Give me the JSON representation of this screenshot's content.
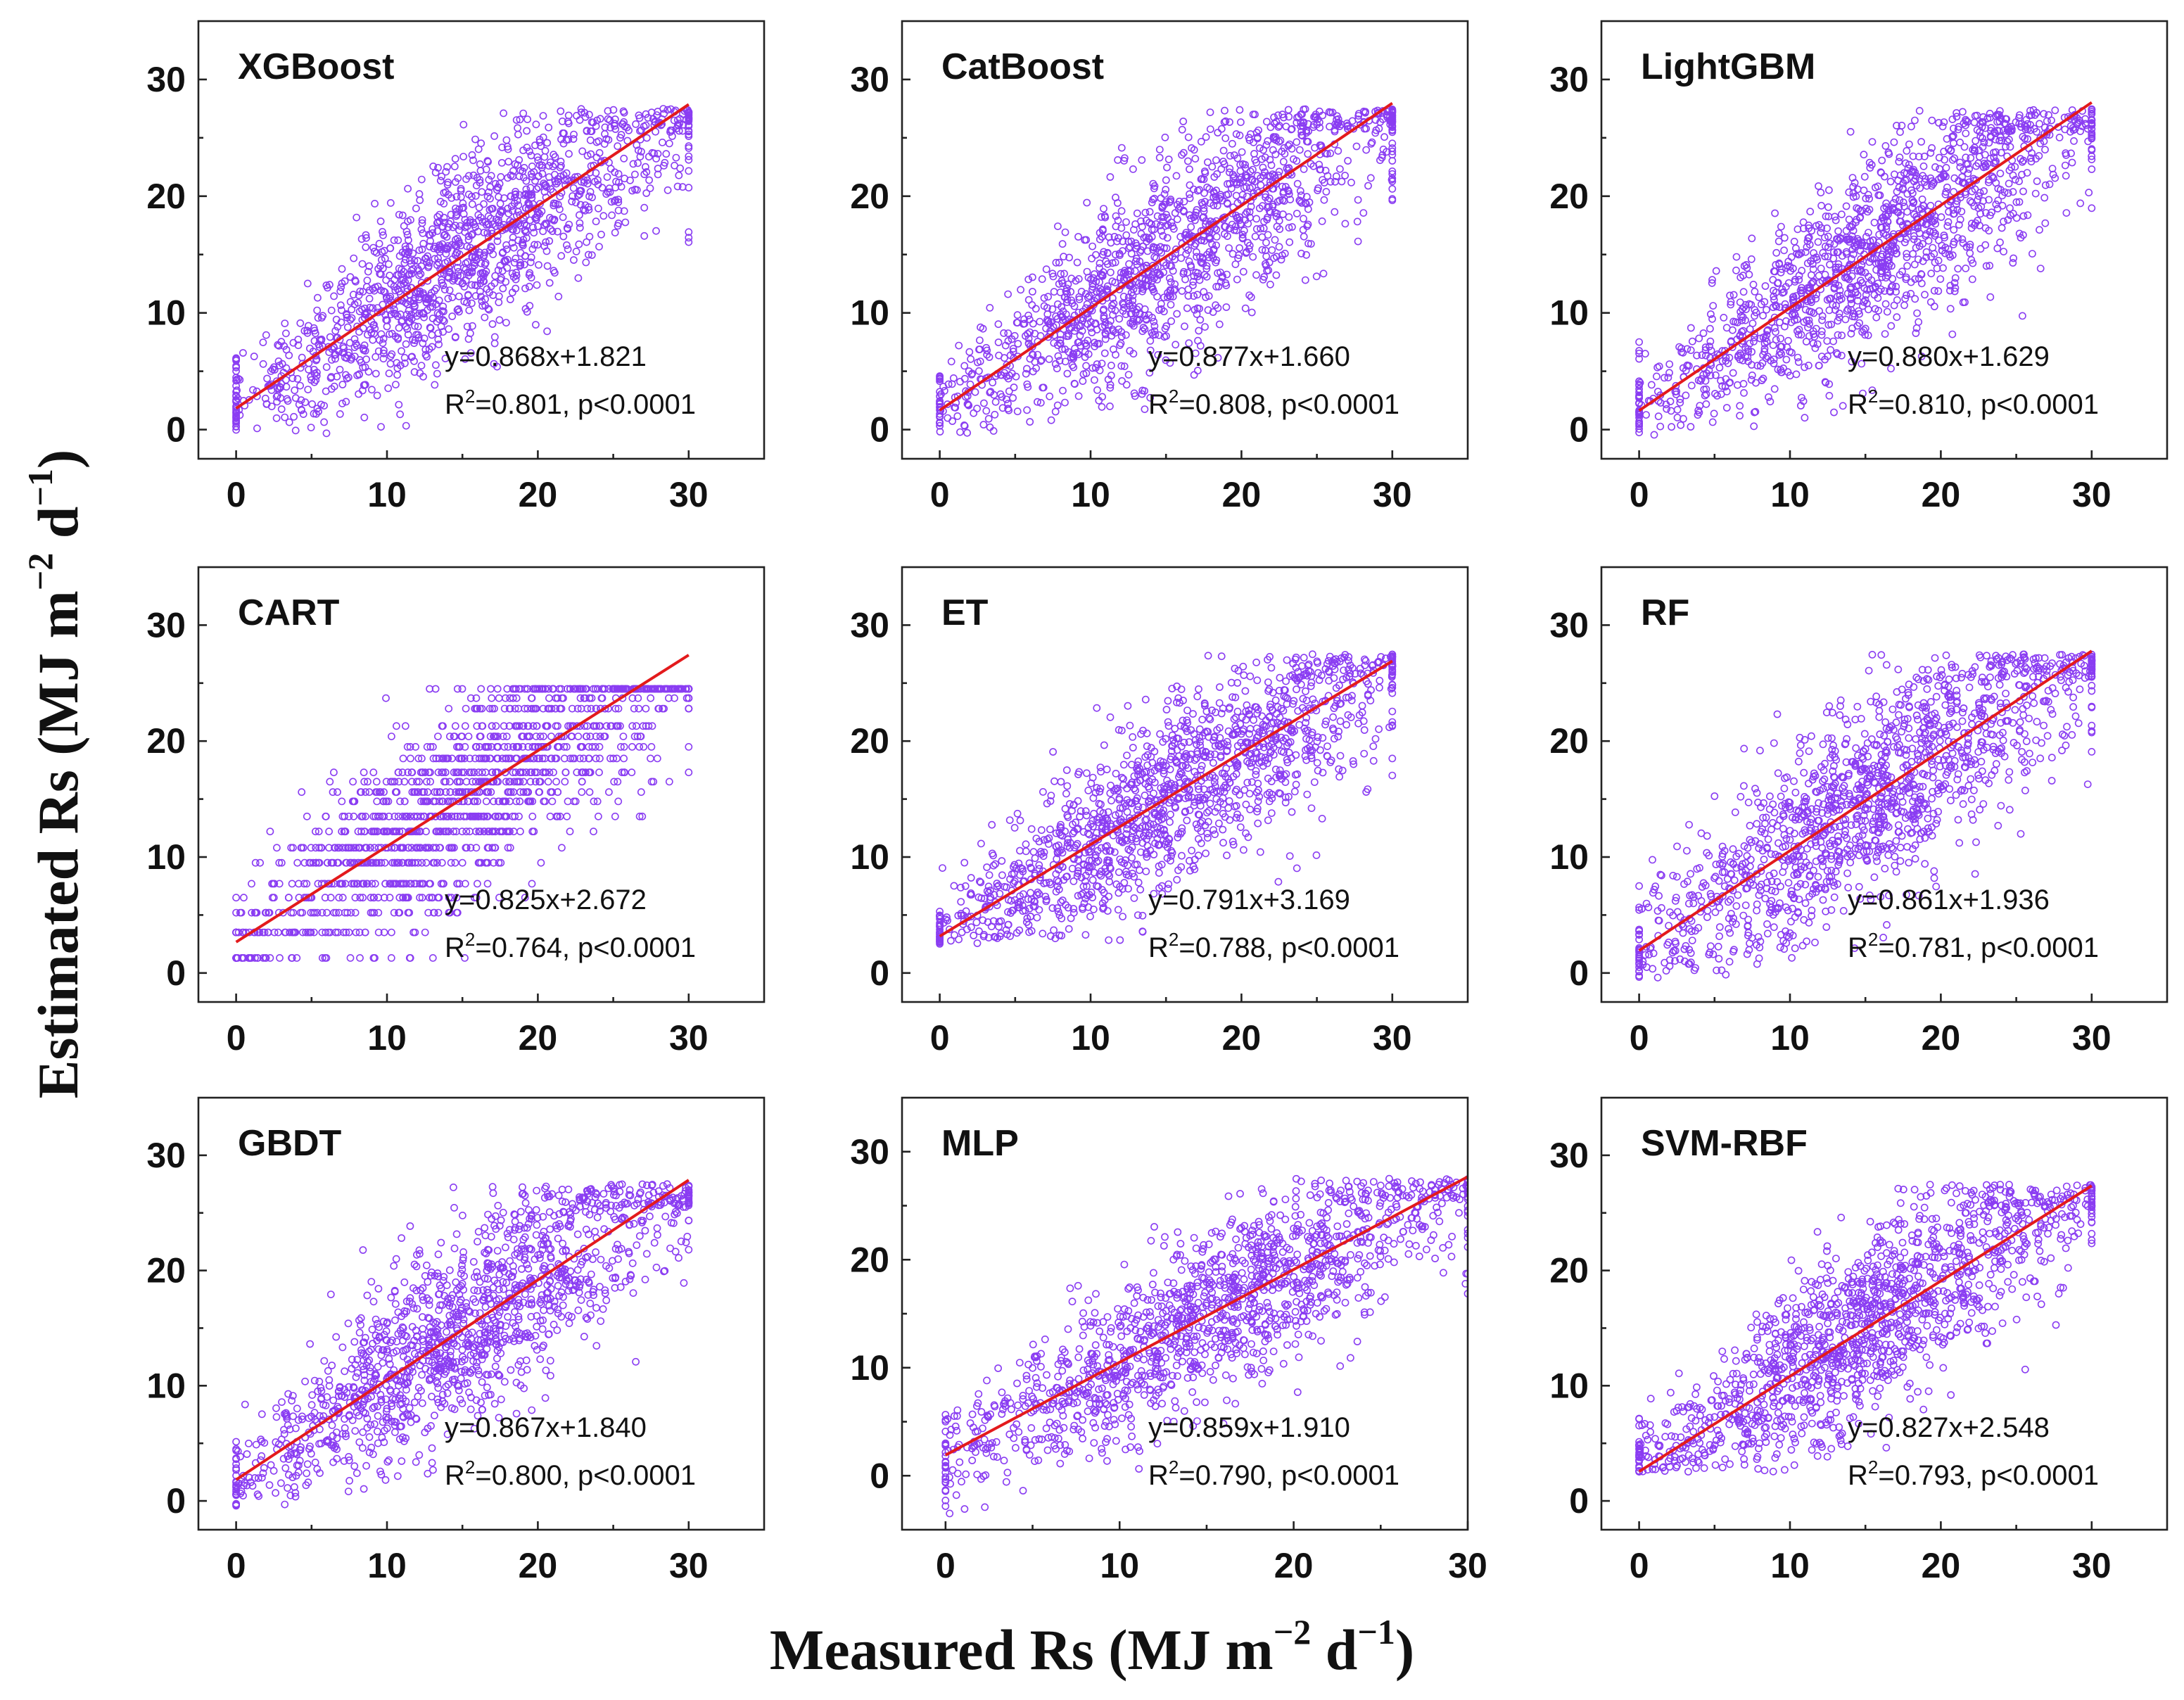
{
  "figure": {
    "x_axis_title": {
      "main": "Measured Rs (MJ m",
      "sup1": "−2",
      "mid": " d",
      "sup2": "−1",
      "end": ")"
    },
    "y_axis_title": {
      "main": "Estimated Rs (MJ m",
      "sup1": "−2",
      "mid": " d",
      "sup2": "−1",
      "end": ")"
    }
  },
  "colors": {
    "points": "#8a3df2",
    "fit_line": "#e31a1c",
    "frame": "#222222"
  },
  "chart_data": [
    {
      "type": "scatter",
      "title": "XGBoost",
      "equation": "y=0.868x+1.821",
      "r2_value": "=0.801, p<0.0001",
      "r2_symbol": "R",
      "r2_sup": "2",
      "slope": 0.868,
      "intercept": 1.821,
      "r2": 0.801,
      "xlim": [
        -2.5,
        35
      ],
      "ylim": [
        -2.5,
        35
      ],
      "xticks": [
        0,
        10,
        20,
        30
      ],
      "yticks": [
        0,
        10,
        20,
        30
      ],
      "spread": 4.2,
      "variant": "normal"
    },
    {
      "type": "scatter",
      "title": "CatBoost",
      "equation": "y=0.877x+1.660",
      "r2_value": "=0.808, p<0.0001",
      "r2_symbol": "R",
      "r2_sup": "2",
      "slope": 0.877,
      "intercept": 1.66,
      "r2": 0.808,
      "xlim": [
        -2.5,
        35
      ],
      "ylim": [
        -2.5,
        35
      ],
      "xticks": [
        0,
        10,
        20,
        30
      ],
      "yticks": [
        0,
        10,
        20,
        30
      ],
      "spread": 4.1,
      "variant": "normal"
    },
    {
      "type": "scatter",
      "title": "LightGBM",
      "equation": "y=0.880x+1.629",
      "r2_value": "=0.810, p<0.0001",
      "r2_symbol": "R",
      "r2_sup": "2",
      "slope": 0.88,
      "intercept": 1.629,
      "r2": 0.81,
      "xlim": [
        -2.5,
        35
      ],
      "ylim": [
        -2.5,
        35
      ],
      "xticks": [
        0,
        10,
        20,
        30
      ],
      "yticks": [
        0,
        10,
        20,
        30
      ],
      "spread": 4.1,
      "variant": "normal"
    },
    {
      "type": "scatter",
      "title": "CART",
      "equation": "y=0.825x+2.672",
      "r2_value": "=0.764, p<0.0001",
      "r2_symbol": "R",
      "r2_sup": "2",
      "slope": 0.825,
      "intercept": 2.672,
      "r2": 0.764,
      "xlim": [
        -2.5,
        35
      ],
      "ylim": [
        -2.5,
        35
      ],
      "xticks": [
        0,
        10,
        20,
        30
      ],
      "yticks": [
        0,
        10,
        20,
        30
      ],
      "spread": 4.4,
      "variant": "cart"
    },
    {
      "type": "scatter",
      "title": "ET",
      "equation": "y=0.791x+3.169",
      "r2_value": "=0.788, p<0.0001",
      "r2_symbol": "R",
      "r2_sup": "2",
      "slope": 0.791,
      "intercept": 3.169,
      "r2": 0.788,
      "xlim": [
        -2.5,
        35
      ],
      "ylim": [
        -2.5,
        35
      ],
      "xticks": [
        0,
        10,
        20,
        30
      ],
      "yticks": [
        0,
        10,
        20,
        30
      ],
      "spread": 3.9,
      "variant": "floor"
    },
    {
      "type": "scatter",
      "title": "RF",
      "equation": "y=0.861x+1.936",
      "r2_value": "=0.781, p<0.0001",
      "r2_symbol": "R",
      "r2_sup": "2",
      "slope": 0.861,
      "intercept": 1.936,
      "r2": 0.781,
      "xlim": [
        -2.5,
        35
      ],
      "ylim": [
        -2.5,
        35
      ],
      "xticks": [
        0,
        10,
        20,
        30
      ],
      "yticks": [
        0,
        10,
        20,
        30
      ],
      "spread": 4.5,
      "variant": "normal"
    },
    {
      "type": "scatter",
      "title": "GBDT",
      "equation": "y=0.867x+1.840",
      "r2_value": "=0.800, p<0.0001",
      "r2_symbol": "R",
      "r2_sup": "2",
      "slope": 0.867,
      "intercept": 1.84,
      "r2": 0.8,
      "xlim": [
        -2.5,
        35
      ],
      "ylim": [
        -2.5,
        35
      ],
      "xticks": [
        0,
        10,
        20,
        30
      ],
      "yticks": [
        0,
        10,
        20,
        30
      ],
      "spread": 4.2,
      "variant": "normal"
    },
    {
      "type": "scatter",
      "title": "MLP",
      "equation": "y=0.859x+1.910",
      "r2_value": "=0.790, p<0.0001",
      "r2_symbol": "R",
      "r2_sup": "2",
      "slope": 0.859,
      "intercept": 1.91,
      "r2": 0.79,
      "xlim": [
        -2.5,
        30
      ],
      "ylim": [
        -5,
        35
      ],
      "xticks": [
        0,
        10,
        20,
        30
      ],
      "yticks": [
        0,
        10,
        20,
        30
      ],
      "spread": 4.0,
      "variant": "mlp"
    },
    {
      "type": "scatter",
      "title": "SVM-RBF",
      "equation": "y=0.827x+2.548",
      "r2_value": "=0.793, p<0.0001",
      "r2_symbol": "R",
      "r2_sup": "2",
      "slope": 0.827,
      "intercept": 2.548,
      "r2": 0.793,
      "xlim": [
        -2.5,
        35
      ],
      "ylim": [
        -2.5,
        35
      ],
      "xticks": [
        0,
        10,
        20,
        30
      ],
      "yticks": [
        0,
        10,
        20,
        30
      ],
      "spread": 4.0,
      "variant": "floor"
    }
  ]
}
